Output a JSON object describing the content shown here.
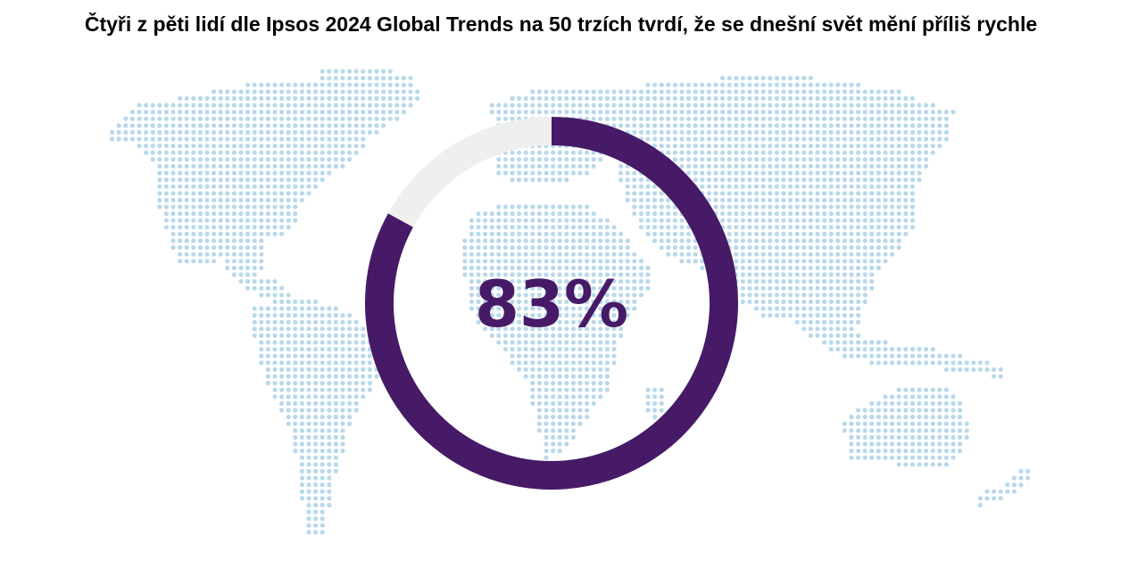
{
  "title": "Čtyři z pěti lidí dle Ipsos 2024 Global Trends na 50 trzích tvrdí, že se dnešní svět mění příliš rychle",
  "colors": {
    "ring_fill": "#461A66",
    "ring_track": "#EFEFEF",
    "map_dots": "#B9D9EA",
    "label": "#461A66"
  },
  "background_icon": "world-map-dots",
  "chart_data": {
    "type": "pie",
    "style": "donut",
    "categories": [
      "",
      ""
    ],
    "values": [
      83,
      17
    ],
    "center_label": "83%"
  }
}
